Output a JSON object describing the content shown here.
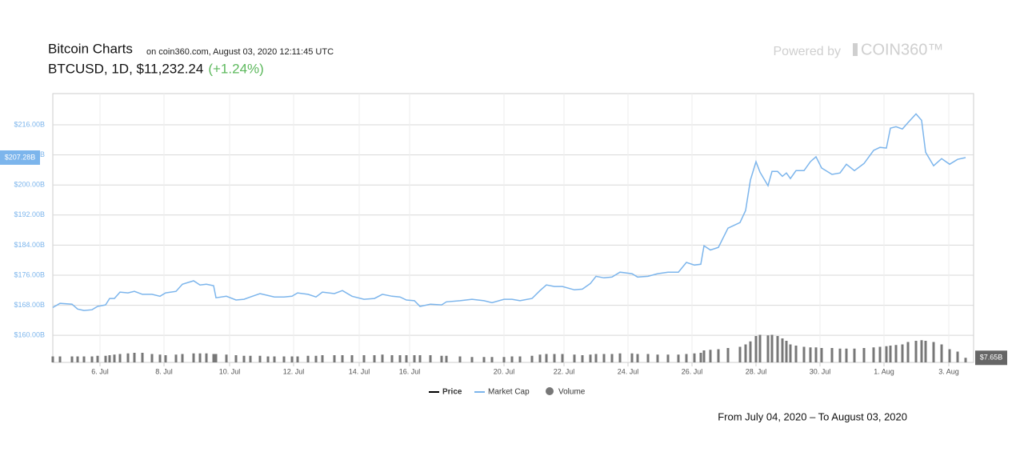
{
  "chart_data": {
    "type": "line",
    "title": "Bitcoin Charts",
    "subtitle": "on coin360.com, August 03, 2020 12:11:45 UTC",
    "ticker": "BTCUSD, 1D, $11,232.24",
    "change": "(+1.24%)",
    "powered_by": "Powered by",
    "brand": "COIN360™",
    "range_text": "From July 04, 2020 – To August 03, 2020",
    "x": [
      0,
      0.9,
      2.4,
      3.1,
      3.9,
      4.9,
      5.6,
      6.6,
      7.1,
      7.7,
      8.4,
      9.4,
      10.2,
      11.2,
      12.4,
      13.4,
      14.1,
      15.4,
      16.2,
      17.6,
      18.4,
      19.2,
      20.1,
      20.4,
      21.7,
      22.9,
      23.9,
      24.7,
      25.9,
      26.9,
      27.7,
      28.9,
      29.9,
      30.6,
      31.9,
      32.9,
      33.7,
      35.2,
      36.2,
      37.4,
      38.9,
      40.2,
      41.2,
      42.4,
      43.4,
      44.2,
      45.2,
      45.9,
      47.2,
      48.6,
      49.2,
      50.9,
      52.4,
      53.9,
      54.9,
      56.4,
      57.4,
      58.4,
      59.9,
      60.9,
      61.7,
      62.7,
      63.7,
      65.2,
      66.2,
      67.2,
      67.9,
      68.9,
      69.9,
      70.9,
      72.4,
      73.1,
      74.4,
      75.6,
      76.9,
      78.2,
      79.2,
      80.2,
      81.0,
      81.4,
      82.2,
      83.2,
      84.4,
      85.9,
      86.6,
      87.2,
      87.9,
      88.4,
      89.4,
      89.9,
      90.6,
      91.2,
      91.7,
      92.2,
      92.9,
      93.9,
      94.7,
      95.4,
      96.1,
      97.4,
      98.4,
      99.2,
      100.2,
      101.4,
      102.6,
      103.4,
      104.2,
      104.7,
      105.4,
      106.2,
      106.9,
      107.9,
      108.6,
      109.1,
      110.1,
      111.1,
      112.1,
      113.1,
      114.1
    ],
    "series": [
      {
        "name": "Price",
        "color": "#000000",
        "values": null
      },
      {
        "name": "Market Cap",
        "color": "#7cb5ec",
        "values": [
          167.4,
          168.5,
          168.3,
          167.0,
          166.6,
          166.8,
          167.7,
          168.1,
          169.8,
          169.8,
          171.5,
          171.3,
          171.7,
          170.9,
          170.9,
          170.4,
          171.3,
          171.7,
          173.6,
          174.5,
          173.4,
          173.6,
          173.2,
          170.0,
          170.4,
          169.4,
          169.6,
          170.2,
          171.1,
          170.6,
          170.2,
          170.2,
          170.4,
          171.3,
          170.9,
          170.2,
          171.5,
          171.1,
          171.9,
          170.4,
          169.6,
          169.8,
          170.9,
          170.4,
          170.2,
          169.4,
          169.2,
          167.7,
          168.3,
          168.1,
          168.9,
          169.2,
          169.6,
          169.2,
          168.7,
          169.6,
          169.6,
          169.2,
          169.8,
          171.9,
          173.4,
          173.0,
          173.0,
          172.1,
          172.3,
          173.8,
          175.7,
          175.3,
          175.5,
          176.8,
          176.4,
          175.5,
          175.7,
          176.4,
          176.8,
          176.8,
          179.4,
          178.7,
          178.9,
          183.8,
          182.7,
          183.4,
          188.5,
          190.0,
          193.2,
          201.3,
          206.2,
          203.4,
          199.8,
          203.6,
          203.6,
          202.3,
          203.2,
          201.7,
          203.8,
          203.8,
          206.2,
          207.5,
          204.5,
          202.8,
          203.2,
          205.5,
          203.8,
          205.7,
          209.2,
          210.0,
          209.8,
          215.1,
          215.5,
          214.9,
          216.6,
          218.9,
          217.2,
          208.7,
          205.1,
          207.0,
          205.5,
          206.8,
          207.28
        ]
      },
      {
        "name": "Volume",
        "color": "#777777",
        "axis": "y2",
        "values": [
          10,
          10,
          10,
          10,
          10,
          10,
          11,
          11,
          12,
          13,
          14,
          15,
          16,
          16,
          14,
          13,
          12,
          13,
          14,
          15,
          15,
          15,
          14,
          14,
          13,
          12,
          11,
          11,
          11,
          10,
          10,
          10,
          10,
          10,
          11,
          11,
          12,
          12,
          12,
          12,
          12,
          12,
          13,
          12,
          12,
          12,
          12,
          12,
          12,
          11,
          11,
          10,
          9,
          9,
          9,
          9,
          10,
          10,
          11,
          13,
          14,
          14,
          14,
          13,
          12,
          13,
          14,
          14,
          14,
          15,
          15,
          14,
          14,
          13,
          13,
          13,
          14,
          15,
          16,
          20,
          21,
          22,
          24,
          26,
          30,
          35,
          44,
          46,
          45,
          46,
          44,
          40,
          36,
          30,
          28,
          26,
          25,
          25,
          24,
          24,
          23,
          23,
          23,
          24,
          25,
          26,
          27,
          28,
          29,
          30,
          34,
          36,
          37,
          36,
          34,
          30,
          22,
          18,
          7.65
        ]
      }
    ],
    "last_labels": [
      {
        "value": 207.28,
        "label": "$207.28B"
      },
      {
        "value": 7.65,
        "label": "$7.65B"
      }
    ],
    "xlim": [
      0,
      115.1
    ],
    "xticks": [
      {
        "value": 5.9,
        "label": "6. Jul"
      },
      {
        "value": 13.9,
        "label": "8. Jul"
      },
      {
        "value": 22.1,
        "label": "10. Jul"
      },
      {
        "value": 30.1,
        "label": "12. Jul"
      },
      {
        "value": 38.3,
        "label": "14. Jul"
      },
      {
        "value": 44.6,
        "label": "16. Jul"
      },
      {
        "value": 56.4,
        "label": "20. Jul"
      },
      {
        "value": 63.9,
        "label": "22. Jul"
      },
      {
        "value": 71.9,
        "label": "24. Jul"
      },
      {
        "value": 79.9,
        "label": "26. Jul"
      },
      {
        "value": 87.9,
        "label": "28. Jul"
      },
      {
        "value": 95.9,
        "label": "30. Jul"
      },
      {
        "value": 103.9,
        "label": "1. Aug"
      },
      {
        "value": 112,
        "label": "3. Aug"
      }
    ],
    "ylim": [
      152.8,
      224.3
    ],
    "yticks": [
      {
        "value": 160,
        "label": "$160.00B"
      },
      {
        "value": 168,
        "label": "$168.00B"
      },
      {
        "value": 176,
        "label": "$176.00B"
      },
      {
        "value": 184,
        "label": "$184.00B"
      },
      {
        "value": 192,
        "label": "$192.00B"
      },
      {
        "value": 200,
        "label": "$200.00B"
      },
      {
        "value": 208,
        "label": "$208.00B"
      },
      {
        "value": 216,
        "label": "$216.00B"
      }
    ],
    "y2lim": [
      0,
      60
    ],
    "grid": true
  }
}
